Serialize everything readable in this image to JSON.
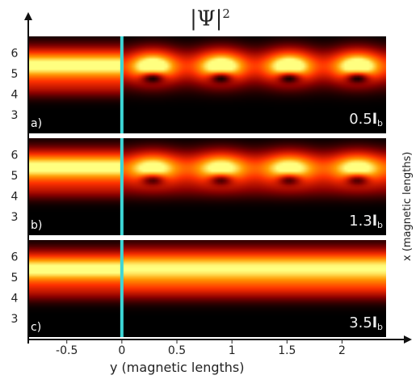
{
  "title_symbol": "|Ψ|",
  "title_power": "2",
  "x_axis_label": "y (magnetic lengths)",
  "y_axis_label": "x (magnetic lengths)",
  "x_ticks": [
    "-0.5",
    "0",
    "0.5",
    "1",
    "1.5",
    "2"
  ],
  "x_tick_values": [
    -0.5,
    0,
    0.5,
    1,
    1.5,
    2
  ],
  "x_range": [
    -0.85,
    2.4
  ],
  "y_ticks": [
    "3",
    "4",
    "5",
    "6"
  ],
  "y_tick_values": [
    3,
    4,
    5,
    6
  ],
  "y_range": [
    2.1,
    6.8
  ],
  "barrier_position": 0,
  "barrier_color": "#3cd6d6",
  "colormap": [
    "#000000",
    "#8b0000",
    "#ff3000",
    "#ff9a00",
    "#ffff80"
  ],
  "panels": [
    {
      "label": "a)",
      "param": "0.5",
      "unit": "l",
      "unit_sub": "b"
    },
    {
      "label": "b)",
      "param": "1.3",
      "unit": "l",
      "unit_sub": "b"
    },
    {
      "label": "c)",
      "param": "3.5",
      "unit": "l",
      "unit_sub": "b"
    }
  ]
}
